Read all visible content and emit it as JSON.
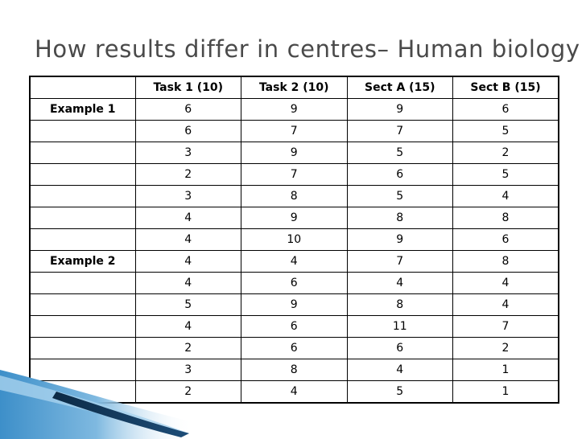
{
  "title": "How results differ in centres– Human biology",
  "table": {
    "headers": [
      "",
      "Task 1 (10)",
      "Task 2 (10)",
      "Sect A (15)",
      "Sect B (15)"
    ],
    "rows": [
      {
        "label": "Example 1",
        "values": [
          "6",
          "9",
          "9",
          "6"
        ]
      },
      {
        "label": "",
        "values": [
          "6",
          "7",
          "7",
          "5"
        ]
      },
      {
        "label": "",
        "values": [
          "3",
          "9",
          "5",
          "2"
        ]
      },
      {
        "label": "",
        "values": [
          "2",
          "7",
          "6",
          "5"
        ]
      },
      {
        "label": "",
        "values": [
          "3",
          "8",
          "5",
          "4"
        ]
      },
      {
        "label": "",
        "values": [
          "4",
          "9",
          "8",
          "8"
        ]
      },
      {
        "label": "",
        "values": [
          "4",
          "10",
          "9",
          "6"
        ]
      },
      {
        "label": "Example 2",
        "values": [
          "4",
          "4",
          "7",
          "8"
        ]
      },
      {
        "label": "",
        "values": [
          "4",
          "6",
          "4",
          "4"
        ]
      },
      {
        "label": "",
        "values": [
          "5",
          "9",
          "8",
          "4"
        ]
      },
      {
        "label": "",
        "values": [
          "4",
          "6",
          "11",
          "7"
        ]
      },
      {
        "label": "",
        "values": [
          "2",
          "6",
          "6",
          "2"
        ]
      },
      {
        "label": "",
        "values": [
          "3",
          "8",
          "4",
          "1"
        ]
      },
      {
        "label": "",
        "values": [
          "2",
          "4",
          "5",
          "1"
        ]
      }
    ]
  },
  "colors": {
    "title": "#4a4a4a",
    "swoosh_blue": "#3d8fc9",
    "swoosh_dark": "#0c2a45"
  }
}
